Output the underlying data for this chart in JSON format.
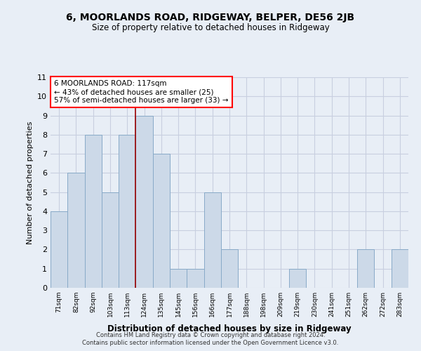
{
  "title": "6, MOORLANDS ROAD, RIDGEWAY, BELPER, DE56 2JB",
  "subtitle": "Size of property relative to detached houses in Ridgeway",
  "xlabel": "Distribution of detached houses by size in Ridgeway",
  "ylabel": "Number of detached properties",
  "bin_labels": [
    "71sqm",
    "82sqm",
    "92sqm",
    "103sqm",
    "113sqm",
    "124sqm",
    "135sqm",
    "145sqm",
    "156sqm",
    "166sqm",
    "177sqm",
    "188sqm",
    "198sqm",
    "209sqm",
    "219sqm",
    "230sqm",
    "241sqm",
    "251sqm",
    "262sqm",
    "272sqm",
    "283sqm"
  ],
  "bar_values": [
    4,
    6,
    8,
    5,
    8,
    9,
    7,
    1,
    1,
    5,
    2,
    0,
    0,
    0,
    1,
    0,
    0,
    0,
    2,
    0,
    2
  ],
  "bar_color": "#ccd9e8",
  "bar_edge_color": "#88aac8",
  "bar_edge_width": 0.7,
  "grid_color": "#c8cfe0",
  "bg_color": "#e8eef6",
  "vline_index": 4.5,
  "annotation_text_line1": "6 MOORLANDS ROAD: 117sqm",
  "annotation_text_line2": "← 43% of detached houses are smaller (25)",
  "annotation_text_line3": "57% of semi-detached houses are larger (33) →",
  "annotation_box_facecolor": "white",
  "annotation_box_edgecolor": "red",
  "vline_color": "#990000",
  "ylim_max": 11,
  "yticks": [
    0,
    1,
    2,
    3,
    4,
    5,
    6,
    7,
    8,
    9,
    10,
    11
  ],
  "footer_line1": "Contains HM Land Registry data © Crown copyright and database right 2024.",
  "footer_line2": "Contains public sector information licensed under the Open Government Licence v3.0."
}
